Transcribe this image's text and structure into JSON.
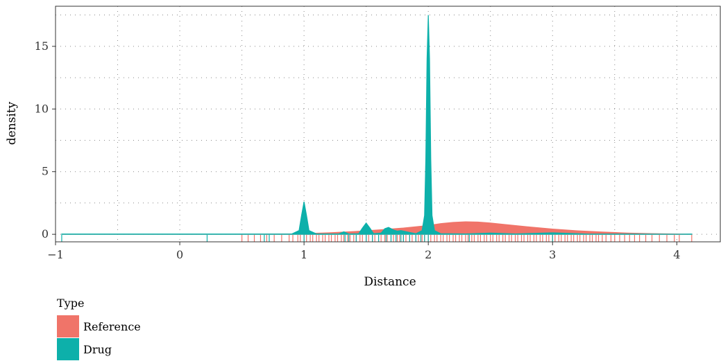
{
  "chart_data": {
    "type": "area",
    "xlabel": "Distance",
    "ylabel": "density",
    "xlim": [
      -1.0,
      4.35
    ],
    "ylim": [
      -0.6,
      18.2
    ],
    "xticks": [
      -1,
      0,
      1,
      2,
      3,
      4
    ],
    "xtick_labels": [
      "−1",
      "0",
      "1",
      "2",
      "3",
      "4"
    ],
    "yticks": [
      0,
      5,
      10,
      15
    ],
    "ytick_labels": [
      "0",
      "5",
      "10",
      "15"
    ],
    "grid": "dotted",
    "legend": {
      "title": "Type",
      "position": "bottom-left",
      "entries": [
        {
          "label": "Reference",
          "color": "#F07469"
        },
        {
          "label": "Drug",
          "color": "#0DB0AA"
        }
      ]
    },
    "series": [
      {
        "name": "Reference",
        "color": "#F07469",
        "x": [
          -0.95,
          0.4,
          0.9,
          1.0,
          1.2,
          1.4,
          1.6,
          1.8,
          2.0,
          2.1,
          2.2,
          2.3,
          2.4,
          2.5,
          2.6,
          2.8,
          3.0,
          3.2,
          3.4,
          3.6,
          3.8,
          4.0,
          4.12
        ],
        "y": [
          0.0,
          0.0,
          0.03,
          0.05,
          0.12,
          0.22,
          0.35,
          0.5,
          0.7,
          0.85,
          0.95,
          1.0,
          0.98,
          0.9,
          0.8,
          0.6,
          0.42,
          0.28,
          0.18,
          0.1,
          0.05,
          0.02,
          0.0
        ]
      },
      {
        "name": "Drug",
        "color": "#0DB0AA",
        "x": [
          -0.95,
          0.9,
          0.96,
          0.98,
          1.0,
          1.02,
          1.04,
          1.1,
          1.28,
          1.32,
          1.36,
          1.44,
          1.47,
          1.5,
          1.53,
          1.56,
          1.62,
          1.65,
          1.68,
          1.72,
          1.75,
          1.78,
          1.85,
          1.9,
          1.95,
          1.97,
          1.98,
          1.99,
          2.0,
          2.01,
          2.02,
          2.03,
          2.05,
          2.1,
          2.3,
          2.5,
          2.7,
          3.0,
          3.3,
          3.6,
          4.0,
          4.12
        ],
        "y": [
          0.02,
          0.02,
          0.3,
          1.5,
          2.6,
          1.5,
          0.3,
          0.03,
          0.03,
          0.2,
          0.03,
          0.05,
          0.5,
          0.9,
          0.5,
          0.05,
          0.1,
          0.45,
          0.55,
          0.35,
          0.25,
          0.3,
          0.15,
          0.05,
          0.3,
          1.5,
          6.0,
          14.0,
          17.5,
          14.0,
          6.0,
          1.5,
          0.3,
          0.05,
          0.03,
          0.1,
          0.03,
          0.12,
          0.02,
          0.02,
          0.01,
          0.02
        ]
      }
    ],
    "rug": {
      "Reference": [
        0.5,
        0.55,
        0.6,
        0.65,
        0.7,
        0.76,
        0.82,
        0.88,
        0.91,
        0.95,
        0.97,
        1.0,
        1.02,
        1.05,
        1.07,
        1.1,
        1.12,
        1.15,
        1.17,
        1.2,
        1.22,
        1.25,
        1.27,
        1.3,
        1.32,
        1.35,
        1.37,
        1.4,
        1.42,
        1.45,
        1.47,
        1.5,
        1.52,
        1.55,
        1.57,
        1.6,
        1.62,
        1.65,
        1.67,
        1.7,
        1.72,
        1.75,
        1.77,
        1.8,
        1.82,
        1.85,
        1.87,
        1.9,
        1.92,
        1.95,
        1.97,
        2.0,
        2.02,
        2.05,
        2.07,
        2.1,
        2.12,
        2.15,
        2.17,
        2.2,
        2.22,
        2.25,
        2.27,
        2.3,
        2.32,
        2.35,
        2.37,
        2.4,
        2.42,
        2.45,
        2.47,
        2.5,
        2.52,
        2.55,
        2.57,
        2.6,
        2.62,
        2.65,
        2.67,
        2.7,
        2.72,
        2.75,
        2.77,
        2.8,
        2.82,
        2.85,
        2.87,
        2.9,
        2.92,
        2.95,
        2.97,
        3.0,
        3.02,
        3.05,
        3.07,
        3.1,
        3.12,
        3.15,
        3.17,
        3.2,
        3.22,
        3.25,
        3.27,
        3.3,
        3.32,
        3.35,
        3.37,
        3.4,
        3.43,
        3.47,
        3.5,
        3.54,
        3.58,
        3.62,
        3.66,
        3.7,
        3.75,
        3.8,
        3.86,
        3.92,
        3.98,
        4.02,
        4.12
      ],
      "Drug": [
        -0.95,
        0.22,
        0.68,
        0.72,
        1.0,
        1.33,
        1.36,
        1.42,
        1.5,
        1.55,
        1.6,
        1.66,
        1.7,
        1.74,
        1.78,
        1.8,
        1.85,
        1.9,
        1.94,
        1.97,
        2.0,
        2.33,
        3.0
      ]
    }
  }
}
